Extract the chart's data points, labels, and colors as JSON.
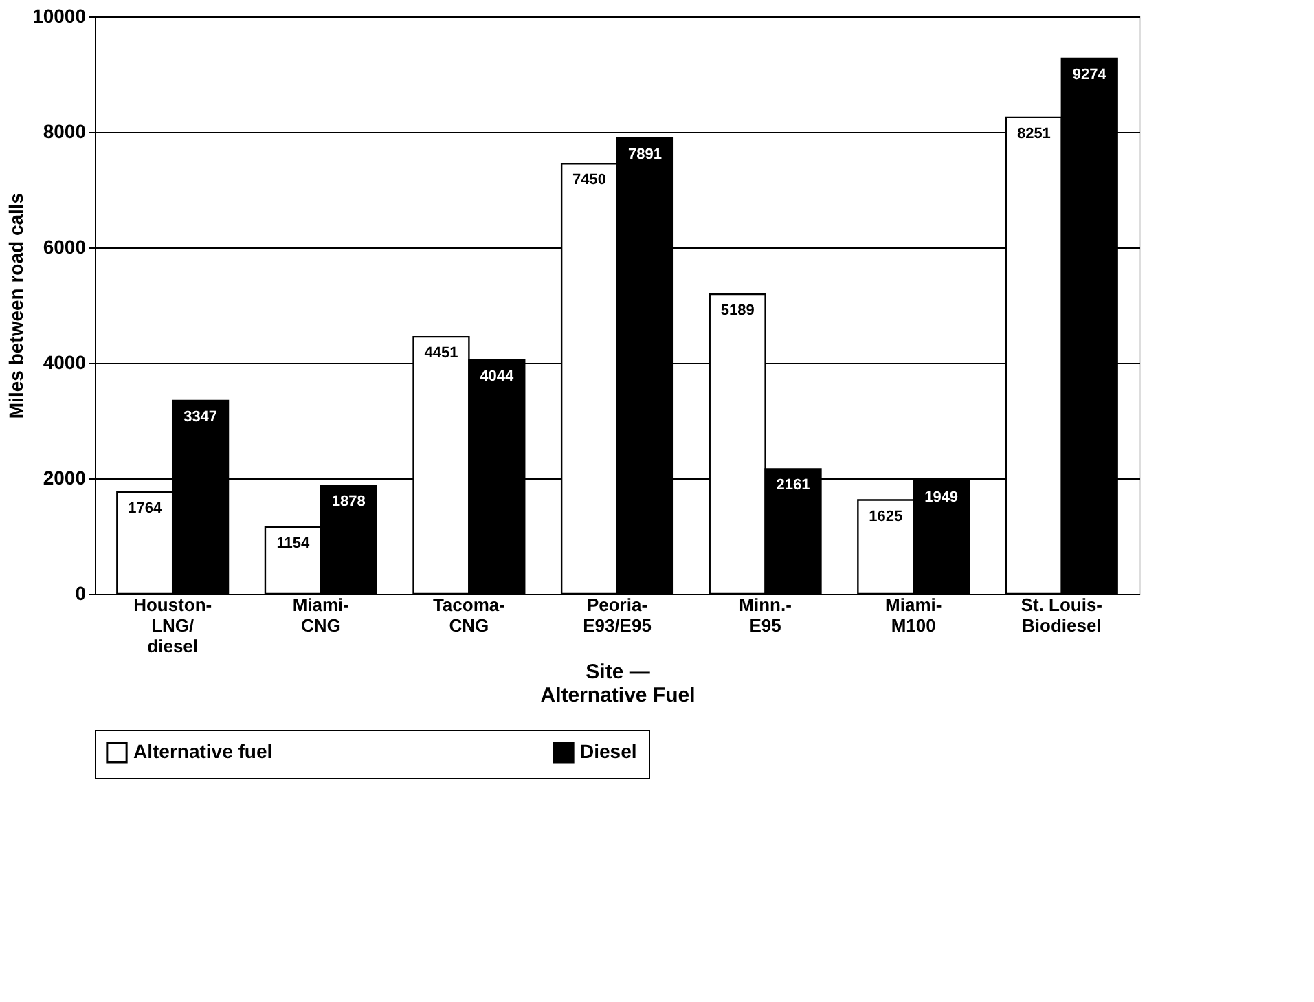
{
  "chart_data": {
    "type": "bar",
    "categories": [
      "Houston-\nLNG/\ndiesel",
      "Miami-\nCNG",
      "Tacoma-\nCNG",
      "Peoria-\nE93/E95",
      "Minn.-\nE95",
      "Miami-\nM100",
      "St. Louis-\nBiodiesel"
    ],
    "series": [
      {
        "name": "Alternative fuel",
        "color": "#ffffff",
        "values": [
          1764,
          1154,
          4451,
          7450,
          5189,
          1625,
          8251
        ]
      },
      {
        "name": "Diesel",
        "color": "#000000",
        "values": [
          3347,
          1878,
          4044,
          7891,
          2161,
          1949,
          9274
        ]
      }
    ],
    "xlabel": "Site —\nAlternative Fuel",
    "ylabel": "Miles between road calls",
    "ylim": [
      0,
      10000
    ],
    "yticks": [
      0,
      2000,
      4000,
      6000,
      8000,
      10000
    ],
    "grid": "y",
    "legend": "bottom",
    "data_labels": true
  }
}
